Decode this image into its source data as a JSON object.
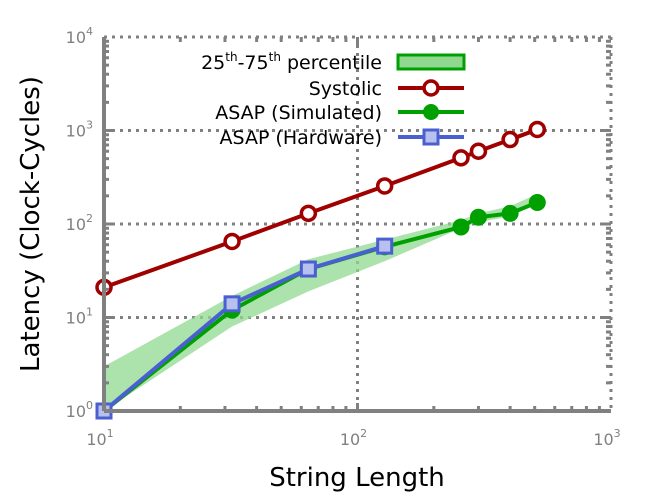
{
  "chart_data": {
    "type": "line",
    "xlabel": "String Length",
    "ylabel": "Latency (Clock-Cycles)",
    "x_scale": "log",
    "y_scale": "log",
    "xlim": [
      10,
      1000
    ],
    "ylim": [
      1,
      10000
    ],
    "grid": true,
    "x_ticks": [
      {
        "value": 10,
        "base": "10",
        "exp": "1"
      },
      {
        "value": 100,
        "base": "10",
        "exp": "2"
      },
      {
        "value": 1000,
        "base": "10",
        "exp": "3"
      }
    ],
    "y_ticks": [
      {
        "value": 1,
        "base": "10",
        "exp": "0"
      },
      {
        "value": 10,
        "base": "10",
        "exp": "1"
      },
      {
        "value": 100,
        "base": "10",
        "exp": "2"
      },
      {
        "value": 1000,
        "base": "10",
        "exp": "3"
      },
      {
        "value": 10000,
        "base": "10",
        "exp": "4"
      }
    ],
    "legend_position": "top-left",
    "band": {
      "label_parts": {
        "a": "25",
        "a_sup": "th",
        "b": "-75",
        "b_sup": "th",
        "c": " percentile"
      },
      "color": "#90d890",
      "edge_color": "#00a000",
      "x": [
        10,
        32,
        64,
        128,
        256,
        300,
        400,
        512
      ],
      "lower": [
        1,
        8,
        19,
        40,
        90,
        105,
        120,
        165
      ],
      "upper": [
        3,
        17,
        42,
        68,
        110,
        130,
        155,
        210
      ]
    },
    "series": [
      {
        "name": "Systolic",
        "color": "#a00000",
        "marker": "open-circle",
        "x": [
          10,
          32,
          64,
          128,
          256,
          300,
          400,
          512
        ],
        "y": [
          21,
          65,
          130,
          255,
          510,
          600,
          800,
          1025
        ]
      },
      {
        "name": "ASAP (Simulated)",
        "color": "#00a000",
        "marker": "filled-circle",
        "x": [
          10,
          32,
          64,
          128,
          256,
          300,
          400,
          512
        ],
        "y": [
          1,
          12,
          33,
          57,
          93,
          118,
          130,
          170
        ]
      },
      {
        "name": "ASAP (Hardware)",
        "color": "#4a5fd0",
        "marker": "open-square",
        "x": [
          10,
          32,
          64,
          128
        ],
        "y": [
          1,
          14,
          33,
          58
        ]
      }
    ]
  }
}
